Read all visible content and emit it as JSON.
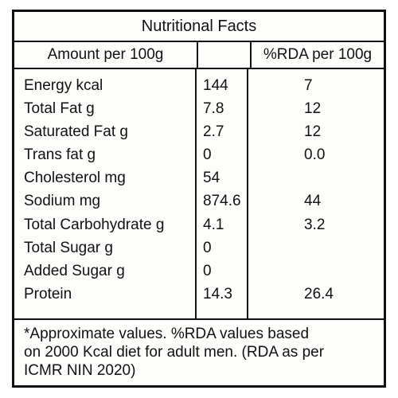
{
  "title": "Nutritional Facts",
  "header": {
    "col1": "Amount per 100g",
    "col2": "",
    "col3": "%RDA per 100g"
  },
  "rows": [
    {
      "name": "Energy kcal",
      "amount": "144",
      "rda": "7"
    },
    {
      "name": "Total Fat g",
      "amount": "7.8",
      "rda": "12"
    },
    {
      "name": "Saturated Fat g",
      "amount": "2.7",
      "rda": "12"
    },
    {
      "name": "Trans fat g",
      "amount": "0",
      "rda": "0.0"
    },
    {
      "name": "Cholesterol mg",
      "amount": "54",
      "rda": ""
    },
    {
      "name": "Sodium mg",
      "amount": "874.6",
      "rda": "44"
    },
    {
      "name": "Total Carbohydrate g",
      "amount": "4.1",
      "rda": "3.2"
    },
    {
      "name": "Total Sugar g",
      "amount": "0",
      "rda": ""
    },
    {
      "name": "Added Sugar g",
      "amount": "0",
      "rda": ""
    },
    {
      "name": "Protein",
      "amount": "14.3",
      "rda": "26.4"
    }
  ],
  "footnote": {
    "line1": "*Approximate values. %RDA values based",
    "line2": "on 2000 Kcal diet for adult men. (RDA as per",
    "line3": "ICMR NIN 2020)"
  }
}
